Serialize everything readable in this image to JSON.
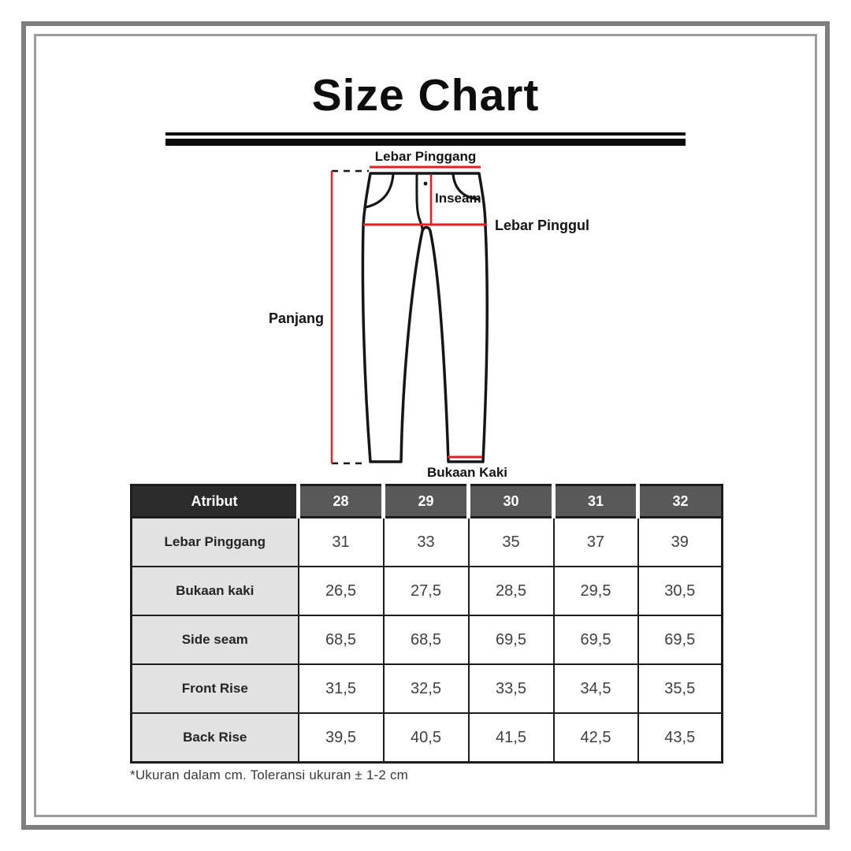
{
  "header": {
    "title": "Size Chart"
  },
  "diagram": {
    "labels": {
      "waist_width": "Lebar Pinggang",
      "inseam": "Inseam",
      "hip_width": "Lebar Pinggul",
      "length": "Panjang",
      "leg_opening": "Bukaan Kaki"
    },
    "colors": {
      "measure_line": "#ec1c24",
      "outline": "#161616"
    }
  },
  "table": {
    "columns": [
      "Atribut",
      "28",
      "29",
      "30",
      "31",
      "32"
    ],
    "rows": [
      [
        "Lebar Pinggang",
        "31",
        "33",
        "35",
        "37",
        "39"
      ],
      [
        "Bukaan kaki",
        "26,5",
        "27,5",
        "28,5",
        "29,5",
        "30,5"
      ],
      [
        "Side seam",
        "68,5",
        "68,5",
        "69,5",
        "69,5",
        "69,5"
      ],
      [
        "Front Rise",
        "31,5",
        "32,5",
        "33,5",
        "34,5",
        "35,5"
      ],
      [
        "Back Rise",
        "39,5",
        "40,5",
        "41,5",
        "42,5",
        "43,5"
      ]
    ],
    "footnote": "*Ukuran dalam cm. Toleransi ukuran ± 1-2 cm",
    "colors": {
      "attribute_header_bg": "#2b2b2b",
      "size_header_bg": "#595959",
      "attribute_cell_bg": "#e2e2e2",
      "value_cell_bg": "#ffffff",
      "header_text": "#ffffff",
      "border": "#1c1c1c"
    }
  },
  "frame": {
    "outer_color": "#7e7e7e",
    "inner_color": "#9c9c9c"
  },
  "chart_data": {
    "type": "table",
    "title": "Size Chart",
    "columns": [
      "Atribut",
      "28",
      "29",
      "30",
      "31",
      "32"
    ],
    "rows": [
      [
        "Lebar Pinggang",
        "31",
        "33",
        "35",
        "37",
        "39"
      ],
      [
        "Bukaan kaki",
        "26,5",
        "27,5",
        "28,5",
        "29,5",
        "30,5"
      ],
      [
        "Side seam",
        "68,5",
        "68,5",
        "69,5",
        "69,5",
        "69,5"
      ],
      [
        "Front Rise",
        "31,5",
        "32,5",
        "33,5",
        "34,5",
        "35,5"
      ],
      [
        "Back Rise",
        "39,5",
        "40,5",
        "41,5",
        "42,5",
        "43,5"
      ]
    ],
    "units_note": "*Ukuran dalam cm. Toleransi ukuran ± 1-2 cm"
  }
}
